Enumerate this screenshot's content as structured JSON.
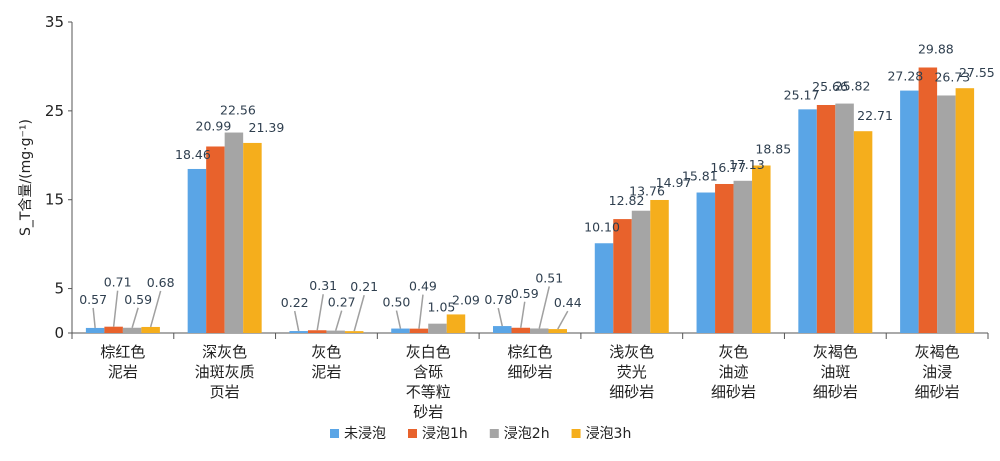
{
  "chart_data": {
    "type": "bar",
    "ylabel": "S_T含量/(mg·g⁻¹)",
    "ylim": [
      0,
      35
    ],
    "yticks": [
      0,
      5,
      15,
      25,
      35
    ],
    "grid": false,
    "legend_position": "bottom",
    "categories": [
      [
        "棕红色",
        "泥岩"
      ],
      [
        "深灰色",
        "油斑灰质",
        "页岩"
      ],
      [
        "灰色",
        "泥岩"
      ],
      [
        "灰白色",
        "含砾",
        "不等粒",
        "砂岩"
      ],
      [
        "棕红色",
        "细砂岩"
      ],
      [
        "浅灰色",
        "荧光",
        "细砂岩"
      ],
      [
        "灰色",
        "油迹",
        "细砂岩"
      ],
      [
        "灰褐色",
        "油斑",
        "细砂岩"
      ],
      [
        "灰褐色",
        "油浸",
        "细砂岩"
      ]
    ],
    "series": [
      {
        "name": "未浸泡",
        "color": "#5aa5e6",
        "values": [
          0.57,
          18.46,
          0.22,
          0.5,
          0.78,
          10.1,
          15.81,
          25.17,
          27.28
        ],
        "labels": [
          "0.57",
          "18.46",
          "0.22",
          "0.50",
          "0.78",
          "10.10",
          "15.81",
          "25.17",
          "27.28"
        ]
      },
      {
        "name": "浸泡1h",
        "color": "#e8622c",
        "values": [
          0.71,
          20.99,
          0.31,
          0.49,
          0.59,
          12.82,
          16.77,
          25.66,
          29.88
        ],
        "labels": [
          "0.71",
          "20.99",
          "0.31",
          "0.49",
          "0.59",
          "12.82",
          "16.77",
          "25.66",
          "29.88"
        ]
      },
      {
        "name": "浸泡2h",
        "color": "#a5a5a5",
        "values": [
          0.59,
          22.56,
          0.27,
          1.05,
          0.51,
          13.76,
          17.13,
          25.82,
          26.73
        ],
        "labels": [
          "0.59",
          "22.56",
          "0.27",
          "1.05",
          "0.51",
          "13.76",
          "17.13",
          "25.82",
          "26.73"
        ]
      },
      {
        "name": "浸泡3h",
        "color": "#f5ae1c",
        "values": [
          0.68,
          21.39,
          0.21,
          2.09,
          0.44,
          14.97,
          18.85,
          22.71,
          27.55
        ],
        "labels": [
          "0.68",
          "21.39",
          "0.21",
          "2.09",
          "0.44",
          "14.97",
          "18.85",
          "22.71",
          "27.55"
        ]
      }
    ]
  }
}
